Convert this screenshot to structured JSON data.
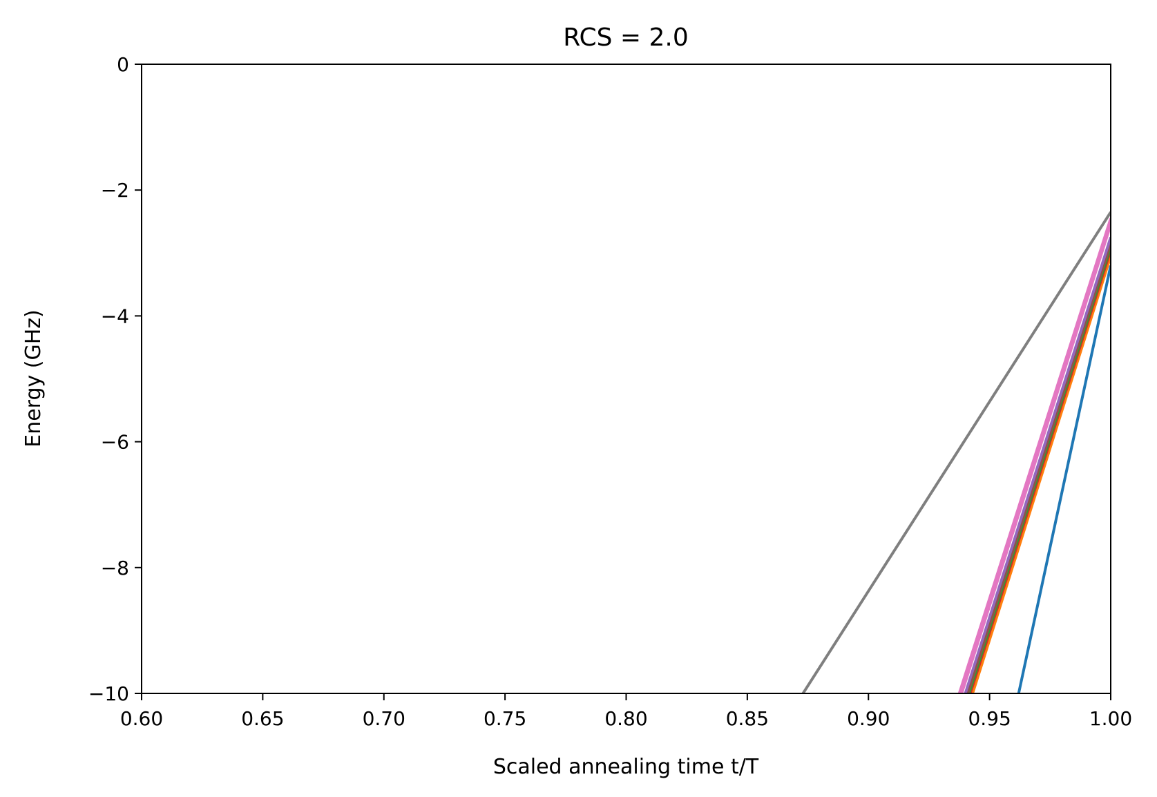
{
  "chart_data": {
    "type": "line",
    "title": "RCS = 2.0",
    "xlabel": "Scaled annealing time t/T",
    "ylabel": "Energy (GHz)",
    "xlim": [
      0.6,
      1.0
    ],
    "ylim": [
      -10,
      0
    ],
    "xticks": [
      0.6,
      0.65,
      0.7,
      0.75,
      0.8,
      0.85,
      0.9,
      0.95,
      1.0
    ],
    "xtick_labels": [
      "0.60",
      "0.65",
      "0.70",
      "0.75",
      "0.80",
      "0.85",
      "0.90",
      "0.95",
      "1.00"
    ],
    "yticks": [
      0,
      -2,
      -4,
      -6,
      -8,
      -10
    ],
    "ytick_labels": [
      "0",
      "−2",
      "−4",
      "−6",
      "−8",
      "−10"
    ],
    "grid": false,
    "series": [
      {
        "color": "#1f77b4",
        "x": [
          0.962,
          1.0
        ],
        "y": [
          -10,
          -3.2
        ]
      },
      {
        "color": "#ff7f0e",
        "x": [
          0.943,
          1.0
        ],
        "y": [
          -10,
          -3.05
        ]
      },
      {
        "color": "#d62728",
        "x": [
          0.942,
          1.0
        ],
        "y": [
          -10,
          -2.95
        ]
      },
      {
        "color": "#2ca02c",
        "x": [
          0.9415,
          1.0
        ],
        "y": [
          -10,
          -2.9
        ]
      },
      {
        "color": "#8c564b",
        "x": [
          0.941,
          1.0
        ],
        "y": [
          -10,
          -2.85
        ]
      },
      {
        "color": "#9467bd",
        "x": [
          0.94,
          1.0
        ],
        "y": [
          -10,
          -2.75
        ]
      },
      {
        "color": "#7f7f7f",
        "x": [
          0.873,
          1.0
        ],
        "y": [
          -10,
          -2.35
        ]
      },
      {
        "color": "#e377c2",
        "x": [
          0.9375,
          1.0
        ],
        "y": [
          -10,
          -2.45
        ]
      },
      {
        "color": "#e377c2",
        "x": [
          0.9385,
          1.0
        ],
        "y": [
          -10,
          -2.55
        ]
      }
    ]
  }
}
